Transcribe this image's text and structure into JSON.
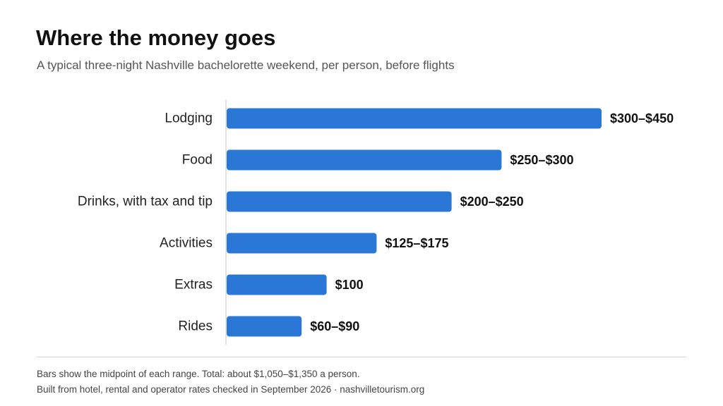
{
  "header": {
    "title": "Where the money goes",
    "subtitle": "A typical three-night Nashville bachelorette weekend, per person, before flights"
  },
  "footer": {
    "note": "Bars show the midpoint of each range. Total: about $1,050–$1,350 a person.",
    "source": "Built from hotel, rental and operator rates checked in September 2026 · nashvilletourism.org"
  },
  "colors": {
    "bar": "#2b77d6",
    "axis": "#c8c8c8"
  },
  "chart_data": {
    "type": "bar",
    "orientation": "horizontal",
    "title": "Where the money goes",
    "subtitle": "A typical three-night Nashville bachelorette weekend, per person, before flights",
    "xlabel": "",
    "ylabel": "",
    "grid": false,
    "xlim": [
      0,
      375
    ],
    "categories": [
      "Lodging",
      "Food",
      "Drinks, with tax and tip",
      "Activities",
      "Extras",
      "Rides"
    ],
    "values": [
      375,
      275,
      225,
      150,
      100,
      75
    ],
    "value_labels": [
      "$300–$450",
      "$250–$300",
      "$200–$250",
      "$125–$175",
      "$100",
      "$60–$90"
    ]
  }
}
